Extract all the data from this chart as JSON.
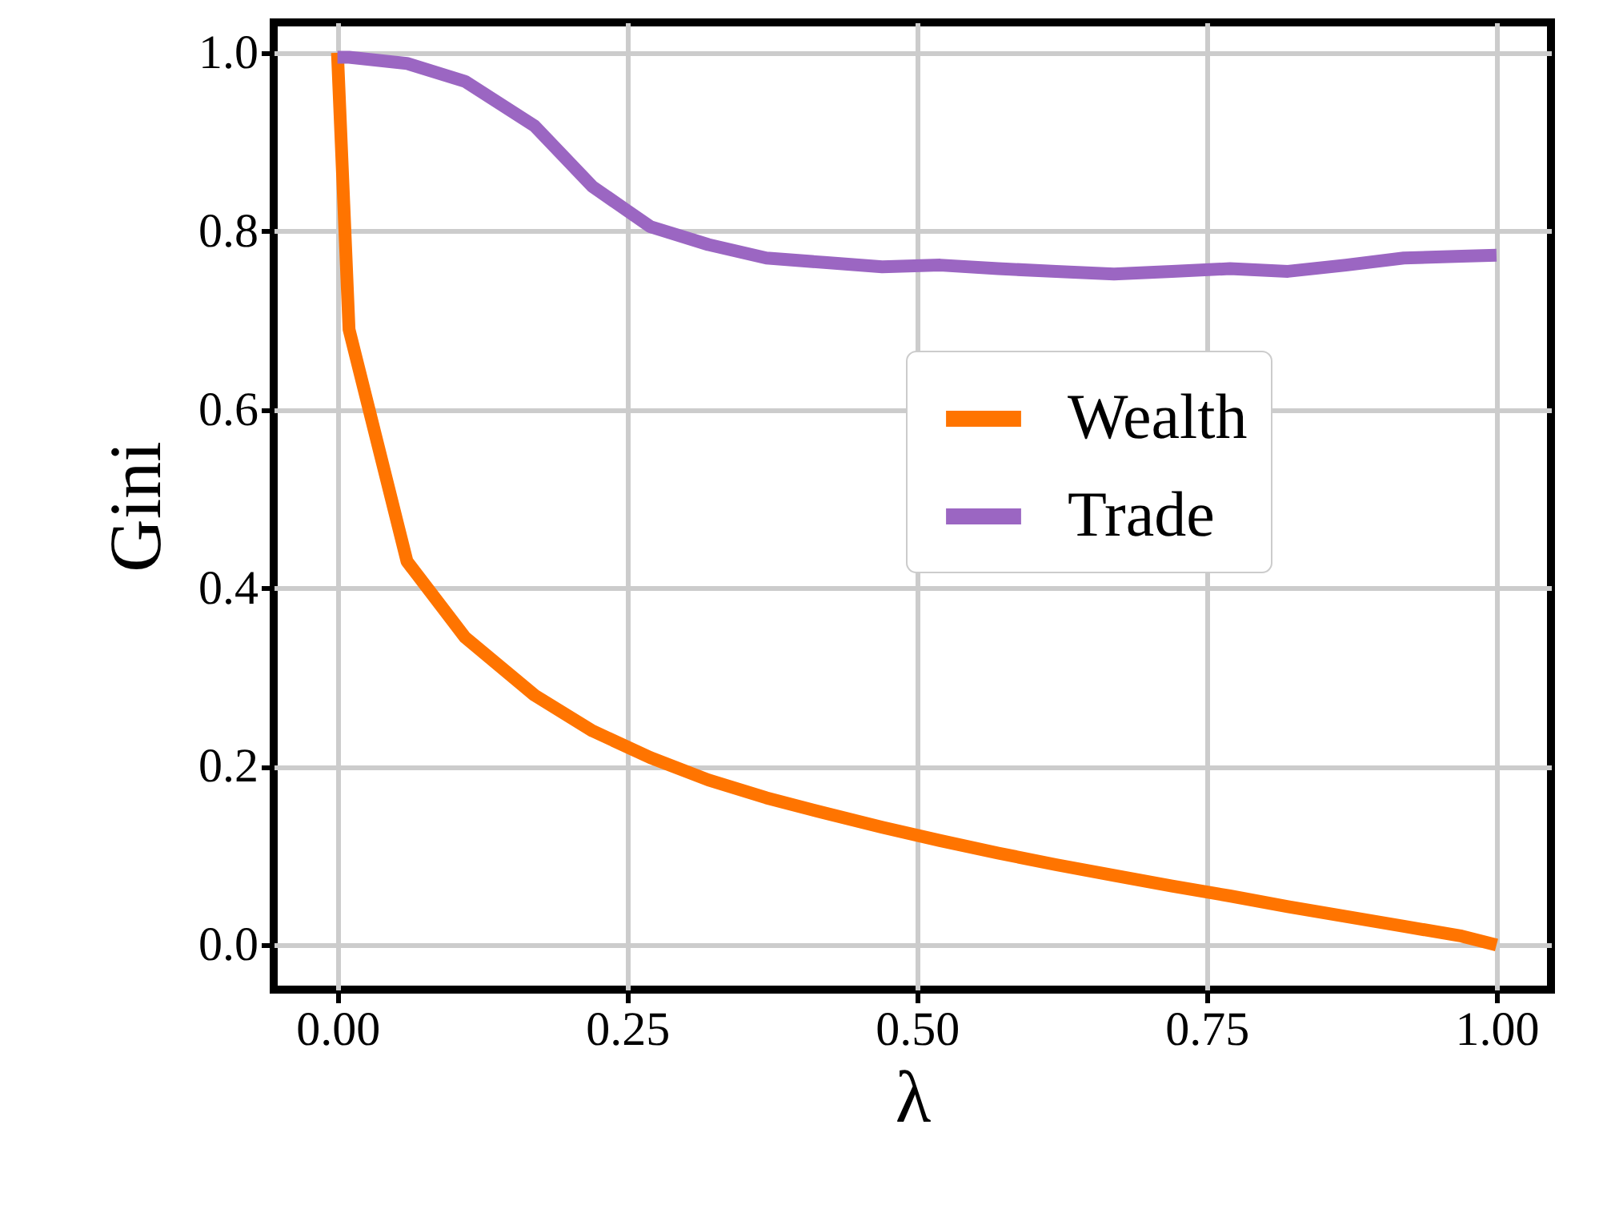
{
  "chart_data": {
    "type": "line",
    "xlabel": "λ",
    "ylabel": "Gini",
    "xlim": [
      -0.055,
      1.047
    ],
    "ylim": [
      -0.05,
      1.034
    ],
    "xticks": [
      {
        "value": 0,
        "label": "0.00"
      },
      {
        "value": 0.25,
        "label": "0.25"
      },
      {
        "value": 0.5,
        "label": "0.50"
      },
      {
        "value": 0.75,
        "label": "0.75"
      },
      {
        "value": 1,
        "label": "1.00"
      }
    ],
    "yticks": [
      {
        "value": 0,
        "label": "0.0"
      },
      {
        "value": 0.2,
        "label": "0.2"
      },
      {
        "value": 0.4,
        "label": "0.4"
      },
      {
        "value": 0.6,
        "label": "0.6"
      },
      {
        "value": 0.8,
        "label": "0.8"
      },
      {
        "value": 1,
        "label": "1.0"
      }
    ],
    "grid": true,
    "legend": "right",
    "marker": "none",
    "line_style": "solid",
    "x": [
      0,
      0.01,
      0.06,
      0.11,
      0.17,
      0.22,
      0.27,
      0.32,
      0.37,
      0.42,
      0.47,
      0.52,
      0.57,
      0.62,
      0.67,
      0.72,
      0.77,
      0.82,
      0.87,
      0.92,
      0.97,
      1.0
    ],
    "series": [
      {
        "name": "Wealth",
        "color": "#ff7400",
        "values": [
          1.0,
          0.69,
          0.43,
          0.345,
          0.28,
          0.24,
          0.21,
          0.185,
          0.165,
          0.148,
          0.132,
          0.117,
          0.103,
          0.09,
          0.078,
          0.066,
          0.055,
          0.043,
          0.032,
          0.021,
          0.01,
          0.0
        ]
      },
      {
        "name": "Trade",
        "color": "#9b66c2",
        "values": [
          0.995,
          0.995,
          0.988,
          0.968,
          0.918,
          0.85,
          0.805,
          0.785,
          0.77,
          0.765,
          0.76,
          0.762,
          0.758,
          0.755,
          0.752,
          0.755,
          0.758,
          0.755,
          0.762,
          0.77,
          0.772,
          0.773
        ]
      }
    ]
  }
}
